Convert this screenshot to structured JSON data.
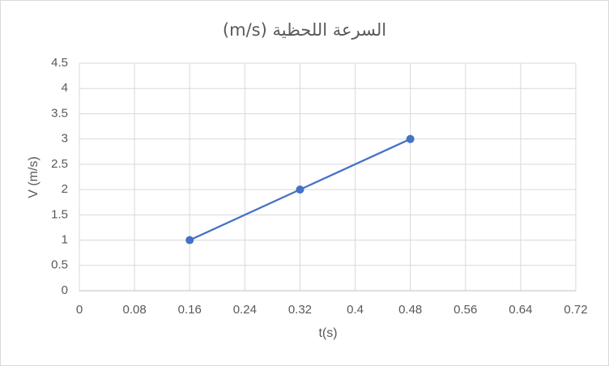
{
  "chart_data": {
    "type": "line",
    "title": "السرعة اللحظية (m/s)",
    "x_label": "t(s)",
    "y_label": "V (m/s)",
    "x": [
      0.16,
      0.32,
      0.48
    ],
    "series": [
      {
        "color": "#4472c4",
        "values": [
          1,
          2,
          3
        ]
      }
    ],
    "xlim": [
      0,
      0.72
    ],
    "xticks": [
      0,
      0.08,
      0.16,
      0.24,
      0.32,
      0.4,
      0.48,
      0.56,
      0.64,
      0.72
    ],
    "ylim": [
      0,
      4.5
    ],
    "yticks": [
      0,
      0.5,
      1,
      1.5,
      2,
      2.5,
      3,
      3.5,
      4,
      4.5
    ],
    "grid": true
  }
}
